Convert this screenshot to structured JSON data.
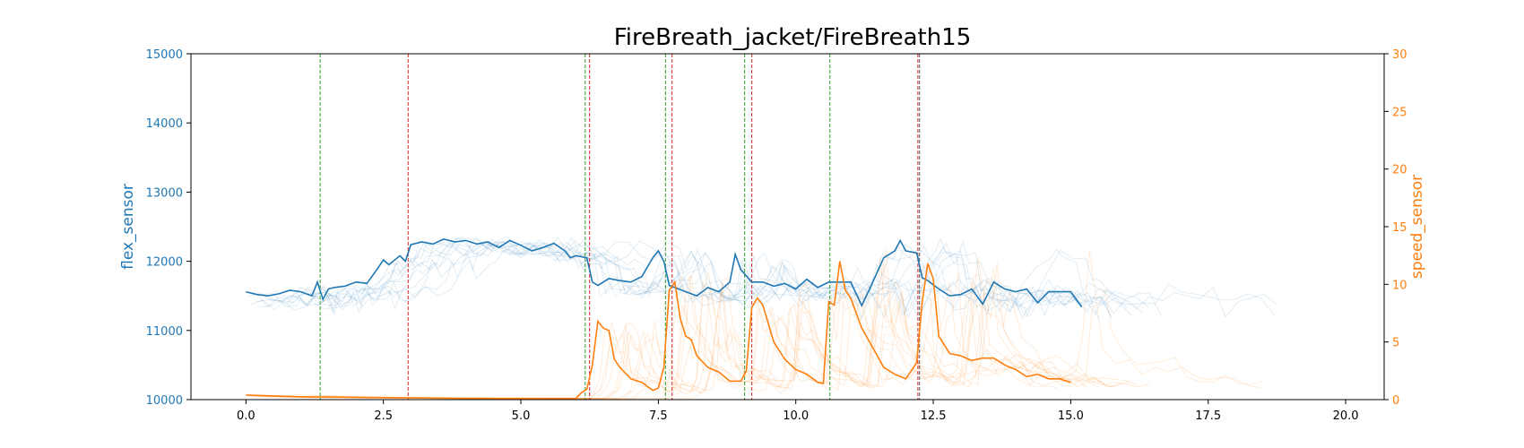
{
  "chart_data": {
    "type": "line",
    "title": "FireBreath_jacket/FireBreath15",
    "xlabel": "",
    "y_left_label": "flex_sensor",
    "y_right_label": "speed_sensor",
    "xlim": [
      -1.0,
      20.7
    ],
    "ylim_left": [
      10000,
      15000
    ],
    "ylim_right": [
      0,
      30
    ],
    "x_ticks": [
      0.0,
      2.5,
      5.0,
      7.5,
      10.0,
      12.5,
      15.0,
      17.5,
      20.0
    ],
    "x_tick_labels": [
      "0.0",
      "2.5",
      "5.0",
      "7.5",
      "10.0",
      "12.5",
      "15.0",
      "17.5",
      "20.0"
    ],
    "y_left_ticks": [
      10000,
      11000,
      12000,
      13000,
      14000,
      15000
    ],
    "y_left_tick_labels": [
      "10000",
      "11000",
      "12000",
      "13000",
      "14000",
      "15000"
    ],
    "y_right_ticks": [
      0,
      5,
      10,
      15,
      20,
      25,
      30
    ],
    "y_right_tick_labels": [
      "0",
      "5",
      "10",
      "15",
      "20",
      "25",
      "30"
    ],
    "grid": false,
    "colors": {
      "flex": "#1f77b4",
      "speed": "#ff7f0e",
      "vline_green": "#2ca02c",
      "vline_red": "#d62728",
      "vline_dark": "#555555",
      "tick_left": "#1f77b4",
      "tick_right": "#ff7f0e"
    },
    "vlines": [
      {
        "x": 1.35,
        "color": "green"
      },
      {
        "x": 2.95,
        "color": "red"
      },
      {
        "x": 6.17,
        "color": "green"
      },
      {
        "x": 6.25,
        "color": "red"
      },
      {
        "x": 7.63,
        "color": "green"
      },
      {
        "x": 7.75,
        "color": "red"
      },
      {
        "x": 9.07,
        "color": "green"
      },
      {
        "x": 9.2,
        "color": "red"
      },
      {
        "x": 10.62,
        "color": "green"
      },
      {
        "x": 12.22,
        "color": "red"
      },
      {
        "x": 12.25,
        "color": "dark"
      }
    ],
    "series": [
      {
        "axis": "left",
        "x": [
          0.0,
          0.2,
          0.4,
          0.6,
          0.8,
          1.0,
          1.2,
          1.3,
          1.4,
          1.5,
          1.6,
          1.8,
          2.0,
          2.2,
          2.4,
          2.5,
          2.6,
          2.8,
          2.9,
          3.0,
          3.2,
          3.4,
          3.6,
          3.8,
          4.0,
          4.2,
          4.4,
          4.6,
          4.8,
          5.0,
          5.2,
          5.4,
          5.6,
          5.8,
          5.9,
          6.0,
          6.2,
          6.3,
          6.4,
          6.6,
          6.8,
          7.0,
          7.2,
          7.4,
          7.5,
          7.6,
          7.7,
          7.8,
          8.0,
          8.2,
          8.4,
          8.6,
          8.8,
          8.9,
          9.0,
          9.2,
          9.4,
          9.6,
          9.8,
          10.0,
          10.2,
          10.4,
          10.6,
          10.8,
          11.0,
          11.2,
          11.4,
          11.6,
          11.8,
          11.9,
          12.0,
          12.2,
          12.3,
          12.4,
          12.6,
          12.8,
          13.0,
          13.2,
          13.4,
          13.6,
          13.8,
          14.0,
          14.2,
          14.4,
          14.6,
          14.8,
          15.0,
          15.2
        ],
        "values": [
          11560,
          11520,
          11500,
          11530,
          11580,
          11560,
          11500,
          11700,
          11450,
          11600,
          11620,
          11640,
          11700,
          11680,
          11900,
          12020,
          11950,
          12080,
          12000,
          12240,
          12280,
          12250,
          12320,
          12280,
          12300,
          12250,
          12280,
          12200,
          12300,
          12230,
          12150,
          12200,
          12260,
          12150,
          12050,
          12080,
          12050,
          11700,
          11650,
          11750,
          11720,
          11700,
          11780,
          12050,
          12150,
          12000,
          11650,
          11620,
          11560,
          11500,
          11620,
          11560,
          11700,
          12100,
          11880,
          11700,
          11700,
          11640,
          11680,
          11600,
          11740,
          11620,
          11700,
          11700,
          11700,
          11360,
          11700,
          12050,
          12150,
          12300,
          12150,
          12120,
          11760,
          11720,
          11600,
          11500,
          11520,
          11600,
          11380,
          11700,
          11600,
          11560,
          11600,
          11400,
          11560,
          11560,
          11560,
          11340
        ]
      },
      {
        "axis": "right",
        "x": [
          0.0,
          1.0,
          2.0,
          3.0,
          4.0,
          5.0,
          5.5,
          6.0,
          6.1,
          6.2,
          6.3,
          6.4,
          6.5,
          6.6,
          6.7,
          6.8,
          7.0,
          7.2,
          7.4,
          7.5,
          7.6,
          7.7,
          7.8,
          7.9,
          8.0,
          8.1,
          8.2,
          8.4,
          8.6,
          8.8,
          9.0,
          9.1,
          9.2,
          9.3,
          9.4,
          9.6,
          9.8,
          10.0,
          10.2,
          10.4,
          10.5,
          10.6,
          10.7,
          10.8,
          10.9,
          11.0,
          11.2,
          11.4,
          11.6,
          11.8,
          12.0,
          12.2,
          12.3,
          12.4,
          12.5,
          12.6,
          12.8,
          13.0,
          13.2,
          13.4,
          13.6,
          13.8,
          14.0,
          14.2,
          14.4,
          14.6,
          14.8,
          15.0
        ],
        "values": [
          0.4,
          0.25,
          0.2,
          0.15,
          0.1,
          0.1,
          0.1,
          0.1,
          0.6,
          0.9,
          3.0,
          6.8,
          6.2,
          6.0,
          3.5,
          2.8,
          1.8,
          1.5,
          0.8,
          1.0,
          2.8,
          9.5,
          10.2,
          7.0,
          5.5,
          5.2,
          3.8,
          2.8,
          2.4,
          1.6,
          1.6,
          2.5,
          8.0,
          8.8,
          8.2,
          5.0,
          3.5,
          2.6,
          2.2,
          1.5,
          1.4,
          8.5,
          8.2,
          12.0,
          9.5,
          8.8,
          6.2,
          4.5,
          2.8,
          2.2,
          1.8,
          3.2,
          8.5,
          11.8,
          10.5,
          5.5,
          4.0,
          3.8,
          3.4,
          3.6,
          3.6,
          3.0,
          2.6,
          2.0,
          2.2,
          1.8,
          1.8,
          1.5
        ]
      }
    ]
  }
}
